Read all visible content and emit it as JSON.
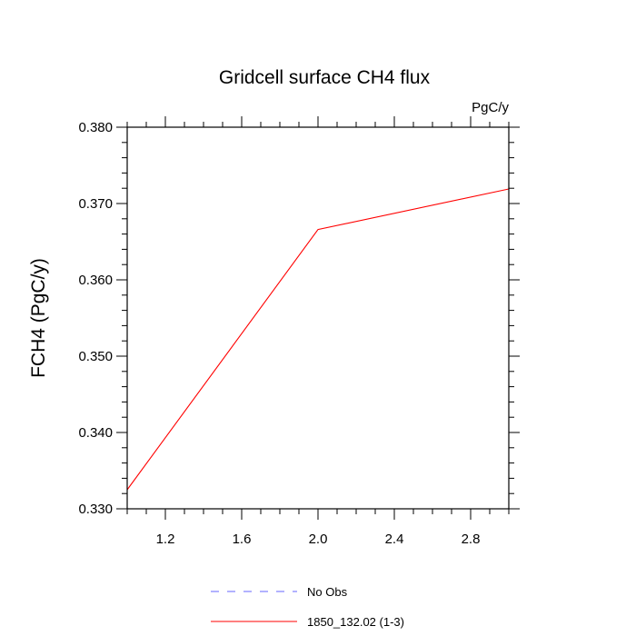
{
  "chart_data": {
    "type": "line",
    "title": "Gridcell surface CH4 flux",
    "units_label": "PgC/y",
    "xlabel": "",
    "ylabel": "FCH4  (PgC/y)",
    "xlim": [
      1.0,
      3.0
    ],
    "ylim": [
      0.33,
      0.38
    ],
    "x_ticks": [
      1.2,
      1.6,
      2.0,
      2.4,
      2.8
    ],
    "x_tick_labels": [
      "1.2",
      "1.6",
      "2.0",
      "2.4",
      "2.8"
    ],
    "y_ticks": [
      0.33,
      0.34,
      0.35,
      0.36,
      0.37,
      0.38
    ],
    "y_tick_labels": [
      "0.330",
      "0.340",
      "0.350",
      "0.360",
      "0.370",
      "0.380"
    ],
    "grid": false,
    "legend_position": "bottom",
    "series": [
      {
        "name": "1850_132.02 (1-3)",
        "color": "#ff0000",
        "dash": "solid",
        "x": [
          1.0,
          2.0,
          3.0
        ],
        "y": [
          0.3325,
          0.3666,
          0.3719
        ]
      }
    ],
    "legend": [
      {
        "label": "No Obs",
        "color": "#6666ff",
        "dash": "dashed"
      },
      {
        "label": "1850_132.02 (1-3)",
        "color": "#ff0000",
        "dash": "solid"
      }
    ]
  }
}
